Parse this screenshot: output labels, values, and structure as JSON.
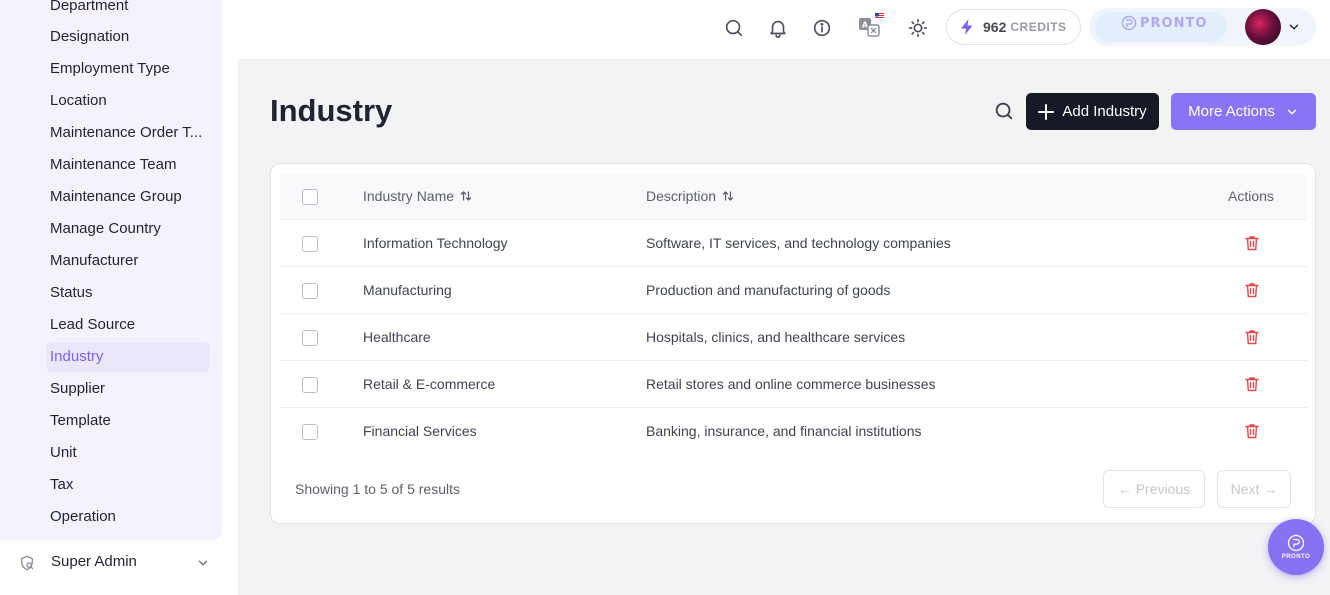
{
  "sidebar": {
    "items": [
      {
        "label": "Department"
      },
      {
        "label": "Designation"
      },
      {
        "label": "Employment Type"
      },
      {
        "label": "Location"
      },
      {
        "label": "Maintenance Order T..."
      },
      {
        "label": "Maintenance Team"
      },
      {
        "label": "Maintenance Group"
      },
      {
        "label": "Manage Country"
      },
      {
        "label": "Manufacturer"
      },
      {
        "label": "Status"
      },
      {
        "label": "Lead Source"
      },
      {
        "label": "Industry",
        "active": true
      },
      {
        "label": "Supplier"
      },
      {
        "label": "Template"
      },
      {
        "label": "Unit"
      },
      {
        "label": "Tax"
      },
      {
        "label": "Operation"
      }
    ],
    "footer": {
      "label": "Super Admin",
      "icon": "user-shield-icon"
    }
  },
  "topbar": {
    "icons": [
      "search-icon",
      "bell-icon",
      "info-icon",
      "translate-icon",
      "sun-icon"
    ],
    "credits": {
      "value": "962",
      "label": "CREDITS"
    },
    "brand": {
      "name": "PRONTO"
    }
  },
  "page": {
    "title": "Industry",
    "add_button": "Add Industry",
    "more_button": "More Actions"
  },
  "table": {
    "columns": {
      "name": "Industry Name",
      "description": "Description",
      "actions": "Actions"
    },
    "rows": [
      {
        "name": "Information Technology",
        "description": "Software, IT services, and technology companies"
      },
      {
        "name": "Manufacturing",
        "description": "Production and manufacturing of goods"
      },
      {
        "name": "Healthcare",
        "description": "Hospitals, clinics, and healthcare services"
      },
      {
        "name": "Retail & E-commerce",
        "description": "Retail stores and online commerce businesses"
      },
      {
        "name": "Financial Services",
        "description": "Banking, insurance, and financial institutions"
      }
    ],
    "footer": "Showing 1 to 5 of 5 results",
    "pagination": {
      "previous": "← Previous",
      "next": "Next →"
    }
  },
  "fab": {
    "label": "PRONTO"
  },
  "colors": {
    "accent": "#8a74f5",
    "danger": "#e5484d",
    "dark_button": "#161a24"
  }
}
